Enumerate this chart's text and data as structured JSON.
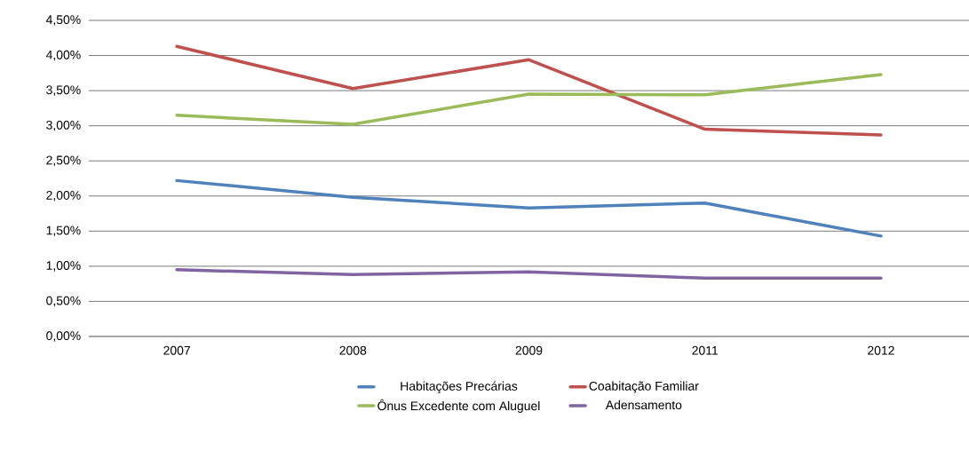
{
  "chart_data": {
    "type": "line",
    "categories": [
      "2007",
      "2008",
      "2009",
      "2011",
      "2012"
    ],
    "series": [
      {
        "name": "Habitações Precárias",
        "color": "#4f81bd",
        "values": [
          2.22,
          1.98,
          1.83,
          1.9,
          1.43
        ]
      },
      {
        "name": "Coabitação Familiar",
        "color": "#c0504d",
        "values": [
          4.13,
          3.53,
          3.94,
          2.95,
          2.87
        ]
      },
      {
        "name": "Ônus Excedente com Aluguel",
        "color": "#9bbb59",
        "values": [
          3.15,
          3.02,
          3.45,
          3.44,
          3.73
        ]
      },
      {
        "name": "Adensamento",
        "color": "#8064a2",
        "values": [
          0.95,
          0.88,
          0.92,
          0.83,
          0.83
        ]
      }
    ],
    "ylim": [
      0,
      4.5
    ],
    "yticks": [
      {
        "value": 0,
        "label": "0,00%"
      },
      {
        "value": 0.5,
        "label": "0,50%"
      },
      {
        "value": 1,
        "label": "1,00%"
      },
      {
        "value": 1.5,
        "label": "1,50%"
      },
      {
        "value": 2,
        "label": "2,00%"
      },
      {
        "value": 2.5,
        "label": "2,50%"
      },
      {
        "value": 3,
        "label": "3,00%"
      },
      {
        "value": 3.5,
        "label": "3,50%"
      },
      {
        "value": 4,
        "label": "4,00%"
      },
      {
        "value": 4.5,
        "label": "4,50%"
      }
    ],
    "grid": "y",
    "legend": "bottom",
    "marker": "none",
    "line_style": "solid"
  }
}
